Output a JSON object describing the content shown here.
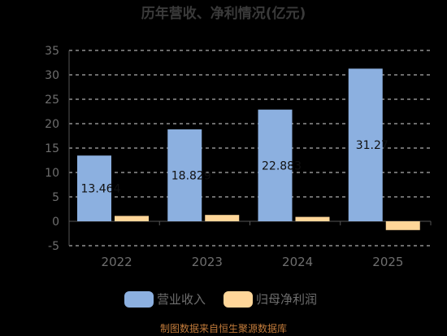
{
  "chart_data": {
    "type": "bar",
    "title": "历年营收、净利情况(亿元)",
    "categories": [
      "2022",
      "2023",
      "2024",
      "2025"
    ],
    "series": [
      {
        "name": "营业收入",
        "values": [
          13.464,
          18.829,
          22.883,
          31.27
        ],
        "labels": [
          "13.464",
          "18.829",
          "22.883",
          "31.27"
        ],
        "color": "#8cb0e0"
      },
      {
        "name": "归母净利润",
        "values": [
          1.1,
          1.3,
          0.9,
          -1.8
        ],
        "color": "#ffd699"
      }
    ],
    "ylim": [
      -5,
      35
    ],
    "yticks": [
      -5,
      0,
      5,
      10,
      15,
      20,
      25,
      30,
      35
    ],
    "grid": true,
    "legend_position": "bottom"
  },
  "source_text": "制图数据来自恒生聚源数据库"
}
